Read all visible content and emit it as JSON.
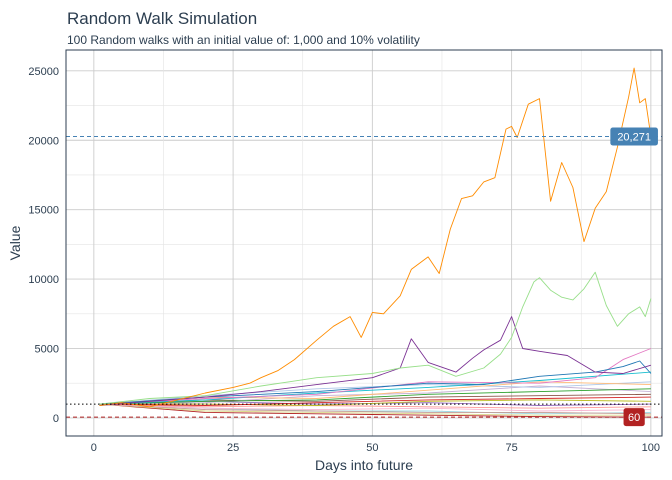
{
  "chart_data": {
    "type": "line",
    "title": "Random Walk Simulation",
    "subtitle": "100 Random walks with an initial value of: 1,000 and 10% volatility",
    "xlabel": "Days into future",
    "ylabel": "Value",
    "xlim": [
      -5,
      102
    ],
    "ylim": [
      -1300,
      26500
    ],
    "x_ticks": [
      0,
      25,
      50,
      75,
      100
    ],
    "y_ticks": [
      0,
      5000,
      10000,
      15000,
      20000,
      25000
    ],
    "x_tick_labels": [
      "0",
      "25",
      "50",
      "75",
      "100"
    ],
    "y_tick_labels": [
      "0",
      "5000",
      "10000",
      "15000",
      "20000",
      "25000"
    ],
    "grid": true,
    "legend": "none",
    "n_walks": 100,
    "initial_value": 1000,
    "reference_lines": [
      {
        "kind": "max",
        "value": 20271,
        "label": "20,271",
        "color": "#4682b4",
        "style": "dashed"
      },
      {
        "kind": "initial",
        "value": 1000,
        "color": "#000000",
        "style": "dotted"
      },
      {
        "kind": "min",
        "value": 60,
        "label": "60",
        "color": "#b22222",
        "style": "dashed"
      }
    ],
    "series": [
      {
        "color": "#ff8c00",
        "x": [
          1,
          5,
          10,
          15,
          20,
          25,
          28,
          30,
          33,
          36,
          40,
          43,
          46,
          48,
          50,
          52,
          55,
          57,
          60,
          62,
          64,
          66,
          68,
          70,
          72,
          74,
          75,
          76,
          78,
          80,
          82,
          84,
          86,
          88,
          90,
          92,
          94,
          96,
          97,
          98,
          99,
          100
        ],
        "values": [
          900,
          1100,
          800,
          1300,
          1800,
          2200,
          2500,
          2900,
          3400,
          4200,
          5600,
          6600,
          7300,
          5800,
          7600,
          7500,
          8800,
          10700,
          11600,
          10400,
          13600,
          15800,
          16000,
          17000,
          17300,
          20800,
          21000,
          20200,
          22600,
          23000,
          15600,
          18400,
          16600,
          12700,
          15100,
          16300,
          19500,
          23100,
          25200,
          22700,
          23000,
          20271
        ]
      },
      {
        "color": "#98df8a",
        "x": [
          1,
          10,
          20,
          30,
          40,
          50,
          55,
          60,
          65,
          70,
          73,
          75,
          77,
          79,
          80,
          82,
          84,
          86,
          88,
          90,
          92,
          94,
          96,
          98,
          99,
          100
        ],
        "values": [
          1000,
          1400,
          1600,
          2300,
          2900,
          3200,
          3600,
          3800,
          3000,
          3600,
          4600,
          5800,
          8000,
          9800,
          10100,
          9200,
          8700,
          8500,
          9300,
          10500,
          8100,
          6600,
          7500,
          8000,
          7300,
          8600
        ]
      },
      {
        "color": "#7b3294",
        "x": [
          1,
          10,
          20,
          30,
          40,
          50,
          55,
          57,
          60,
          65,
          68,
          70,
          73,
          75,
          77,
          80,
          85,
          90,
          95,
          100
        ],
        "values": [
          900,
          1200,
          1500,
          1900,
          2400,
          2900,
          3600,
          5700,
          4000,
          3300,
          4300,
          4900,
          5600,
          7300,
          5000,
          4800,
          4500,
          3300,
          3200,
          3800
        ]
      },
      {
        "color": "#1f77b4",
        "x": [
          1,
          20,
          40,
          60,
          70,
          80,
          90,
          95,
          98,
          100
        ],
        "values": [
          1000,
          1500,
          1900,
          2500,
          2400,
          3000,
          3300,
          3700,
          4100,
          3200
        ]
      },
      {
        "color": "#e377c2",
        "x": [
          1,
          20,
          40,
          60,
          80,
          90,
          95,
          100
        ],
        "values": [
          1000,
          1400,
          1700,
          2600,
          2500,
          2900,
          4200,
          5000
        ]
      },
      {
        "color": "#17becf",
        "x": [
          1,
          20,
          40,
          60,
          80,
          100
        ],
        "values": [
          1000,
          1300,
          1800,
          2200,
          2700,
          3300
        ]
      },
      {
        "color": "#ffbb78",
        "x": [
          1,
          20,
          40,
          60,
          80,
          100
        ],
        "values": [
          1000,
          1500,
          1400,
          2000,
          2600,
          2400
        ]
      },
      {
        "color": "#2ca02c",
        "x": [
          1,
          20,
          40,
          60,
          80,
          100
        ],
        "values": [
          1000,
          1200,
          1300,
          1700,
          1900,
          2100
        ]
      },
      {
        "color": "#aec7e8",
        "x": [
          1,
          20,
          40,
          60,
          80,
          100
        ],
        "values": [
          1000,
          1600,
          2100,
          2400,
          2200,
          2600
        ]
      },
      {
        "color": "#c5b0d5",
        "x": [
          1,
          20,
          40,
          60,
          80,
          100
        ],
        "values": [
          1000,
          1100,
          1600,
          1800,
          2300,
          1900
        ]
      },
      {
        "color": "#8c564b",
        "x": [
          1,
          20,
          40,
          60,
          80,
          100
        ],
        "values": [
          1000,
          1300,
          1200,
          1500,
          1600,
          1700
        ]
      },
      {
        "color": "#d62728",
        "x": [
          1,
          20,
          40,
          60,
          80,
          100
        ],
        "values": [
          1000,
          900,
          1100,
          1300,
          1400,
          1500
        ]
      },
      {
        "color": "#bcbd22",
        "x": [
          1,
          20,
          40,
          60,
          80,
          100
        ],
        "values": [
          1000,
          1000,
          900,
          1200,
          1300,
          1200
        ]
      },
      {
        "color": "#9467bd",
        "x": [
          1,
          20,
          40,
          60,
          80,
          100
        ],
        "values": [
          1000,
          1200,
          1000,
          1100,
          900,
          1000
        ]
      },
      {
        "color": "#ff9896",
        "x": [
          1,
          20,
          40,
          60,
          80,
          100
        ],
        "values": [
          1000,
          800,
          900,
          800,
          700,
          800
        ]
      },
      {
        "color": "#f7b6d2",
        "x": [
          1,
          20,
          40,
          60,
          80,
          100
        ],
        "values": [
          1000,
          700,
          600,
          700,
          500,
          600
        ]
      },
      {
        "color": "#c49c94",
        "x": [
          1,
          20,
          40,
          60,
          80,
          100
        ],
        "values": [
          1000,
          600,
          500,
          400,
          400,
          300
        ]
      },
      {
        "color": "#dbdb8d",
        "x": [
          1,
          20,
          40,
          60,
          80,
          100
        ],
        "values": [
          1000,
          500,
          400,
          300,
          200,
          200
        ]
      },
      {
        "color": "#9edae5",
        "x": [
          1,
          20,
          40,
          60,
          80,
          100
        ],
        "values": [
          1000,
          700,
          500,
          500,
          300,
          400
        ]
      },
      {
        "color": "#b22222",
        "x": [
          1,
          20,
          40,
          60,
          80,
          100
        ],
        "values": [
          1000,
          400,
          300,
          200,
          100,
          60
        ]
      }
    ]
  }
}
